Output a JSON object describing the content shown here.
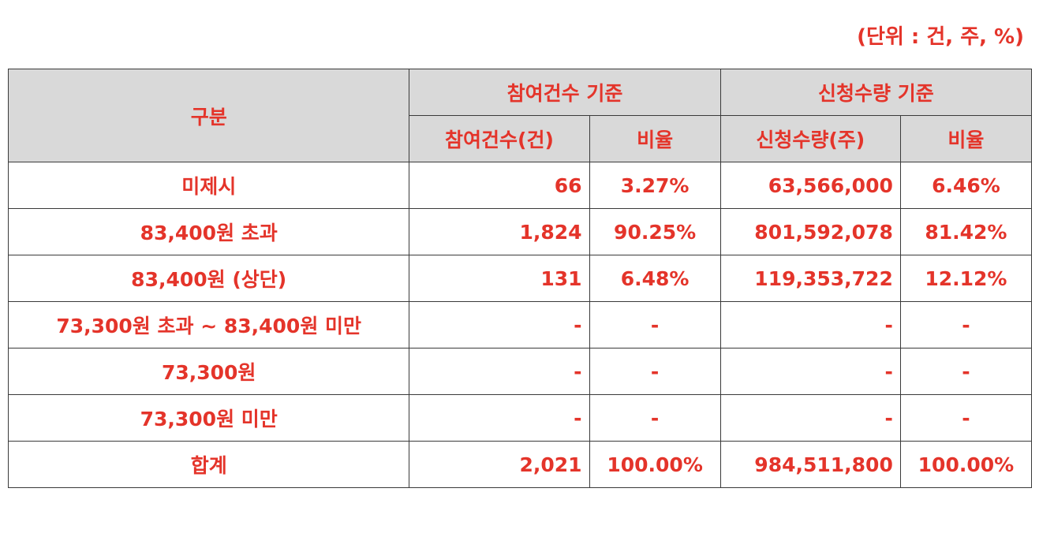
{
  "unit_note": "(단위 : 건, 주, %)",
  "headers": {
    "category": "구분",
    "group_count": "참여건수 기준",
    "group_qty": "신청수량 기준",
    "count": "참여건수(건)",
    "count_ratio": "비율",
    "qty": "신청수량(주)",
    "qty_ratio": "비율"
  },
  "rows": [
    {
      "label": "미제시",
      "count": "66",
      "count_ratio": "3.27%",
      "qty": "63,566,000",
      "qty_ratio": "6.46%"
    },
    {
      "label": "83,400원 초과",
      "count": "1,824",
      "count_ratio": "90.25%",
      "qty": "801,592,078",
      "qty_ratio": "81.42%"
    },
    {
      "label": "83,400원 (상단)",
      "count": "131",
      "count_ratio": "6.48%",
      "qty": "119,353,722",
      "qty_ratio": "12.12%"
    },
    {
      "label": "73,300원 초과 ~ 83,400원 미만",
      "count": "-",
      "count_ratio": "-",
      "qty": "-",
      "qty_ratio": "-"
    },
    {
      "label": "73,300원",
      "count": "-",
      "count_ratio": "-",
      "qty": "-",
      "qty_ratio": "-"
    },
    {
      "label": "73,300원 미만",
      "count": "-",
      "count_ratio": "-",
      "qty": "-",
      "qty_ratio": "-"
    },
    {
      "label": "합계",
      "count": "2,021",
      "count_ratio": "100.00%",
      "qty": "984,511,800",
      "qty_ratio": "100.00%"
    }
  ],
  "colors": {
    "text": "#e4342a",
    "header_bg": "#d9d9d9",
    "border": "#3a3a3a"
  }
}
